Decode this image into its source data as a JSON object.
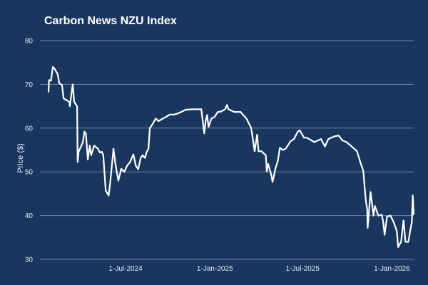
{
  "chart_data": {
    "type": "line",
    "title": "Carbon News NZU Index",
    "xlabel": "",
    "ylabel": "Price ($)",
    "ylim": [
      30,
      80
    ],
    "xlim": [
      "2024-01-24",
      "2026-02-15"
    ],
    "yticks": [
      "30",
      "40",
      "50",
      "60",
      "70",
      "80"
    ],
    "xticks": [
      {
        "date": "2024-07-01",
        "label": "1-Jul-2024"
      },
      {
        "date": "2025-01-01",
        "label": "1-Jan-2025"
      },
      {
        "date": "2025-07-01",
        "label": "1-Jul-2025"
      },
      {
        "date": "2026-01-01",
        "label": "1-Jan-2026"
      }
    ],
    "grid": true,
    "colors": {
      "background": "#19365f",
      "line": "#ffffff",
      "grid": "#6e84a6"
    },
    "series": [
      {
        "points": [
          [
            "2024-01-24",
            68.2
          ],
          [
            "2024-01-25",
            71.0
          ],
          [
            "2024-01-29",
            70.8
          ],
          [
            "2024-02-02",
            74.0
          ],
          [
            "2024-02-06",
            73.5
          ],
          [
            "2024-02-12",
            72.3
          ],
          [
            "2024-02-15",
            70.3
          ],
          [
            "2024-02-21",
            69.8
          ],
          [
            "2024-02-24",
            66.8
          ],
          [
            "2024-03-01",
            66.4
          ],
          [
            "2024-03-07",
            66.0
          ],
          [
            "2024-03-08",
            65.0
          ],
          [
            "2024-03-13",
            69.3
          ],
          [
            "2024-03-14",
            70.0
          ],
          [
            "2024-03-17",
            66.0
          ],
          [
            "2024-03-23",
            65.0
          ],
          [
            "2024-03-24",
            52.2
          ],
          [
            "2024-03-26",
            54.6
          ],
          [
            "2024-04-04",
            56.8
          ],
          [
            "2024-04-07",
            59.2
          ],
          [
            "2024-04-10",
            58.8
          ],
          [
            "2024-04-14",
            52.8
          ],
          [
            "2024-04-18",
            56.0
          ],
          [
            "2024-04-21",
            53.8
          ],
          [
            "2024-04-27",
            56.0
          ],
          [
            "2024-05-05",
            55.3
          ],
          [
            "2024-05-09",
            54.4
          ],
          [
            "2024-05-13",
            54.6
          ],
          [
            "2024-05-16",
            53.8
          ],
          [
            "2024-05-21",
            45.7
          ],
          [
            "2024-05-27",
            44.6
          ],
          [
            "2024-05-30",
            47.4
          ],
          [
            "2024-06-06",
            55.3
          ],
          [
            "2024-06-10",
            51.8
          ],
          [
            "2024-06-16",
            48.0
          ],
          [
            "2024-06-22",
            50.7
          ],
          [
            "2024-06-28",
            50.0
          ],
          [
            "2024-07-04",
            51.4
          ],
          [
            "2024-07-10",
            52.2
          ],
          [
            "2024-07-17",
            54.0
          ],
          [
            "2024-07-22",
            51.4
          ],
          [
            "2024-07-27",
            50.6
          ],
          [
            "2024-08-01",
            53.2
          ],
          [
            "2024-08-05",
            53.8
          ],
          [
            "2024-08-10",
            53.2
          ],
          [
            "2024-08-13",
            54.4
          ],
          [
            "2024-08-17",
            55.3
          ],
          [
            "2024-08-20",
            60.0
          ],
          [
            "2024-08-26",
            61.0
          ],
          [
            "2024-09-01",
            62.2
          ],
          [
            "2024-09-07",
            61.6
          ],
          [
            "2024-09-16",
            62.2
          ],
          [
            "2024-09-23",
            62.6
          ],
          [
            "2024-09-30",
            63.1
          ],
          [
            "2024-10-09",
            63.1
          ],
          [
            "2024-10-18",
            63.4
          ],
          [
            "2024-11-02",
            64.2
          ],
          [
            "2024-11-16",
            64.3
          ],
          [
            "2024-12-04",
            64.3
          ],
          [
            "2024-12-07",
            61.6
          ],
          [
            "2024-12-10",
            58.8
          ],
          [
            "2024-12-13",
            61.6
          ],
          [
            "2024-12-16",
            63.0
          ],
          [
            "2024-12-19",
            60.3
          ],
          [
            "2024-12-25",
            62.2
          ],
          [
            "2024-12-31",
            62.5
          ],
          [
            "2025-01-07",
            63.7
          ],
          [
            "2025-01-14",
            63.8
          ],
          [
            "2025-01-22",
            64.3
          ],
          [
            "2025-01-26",
            65.3
          ],
          [
            "2025-01-29",
            64.3
          ],
          [
            "2025-02-10",
            63.7
          ],
          [
            "2025-02-23",
            63.7
          ],
          [
            "2025-03-07",
            62.2
          ],
          [
            "2025-03-17",
            60.0
          ],
          [
            "2025-03-24",
            54.7
          ],
          [
            "2025-03-29",
            58.5
          ],
          [
            "2025-04-01",
            54.7
          ],
          [
            "2025-04-07",
            54.7
          ],
          [
            "2025-04-16",
            53.8
          ],
          [
            "2025-04-18",
            50.1
          ],
          [
            "2025-04-21",
            51.8
          ],
          [
            "2025-04-27",
            49.4
          ],
          [
            "2025-04-30",
            47.7
          ],
          [
            "2025-05-06",
            50.8
          ],
          [
            "2025-05-11",
            52.6
          ],
          [
            "2025-05-15",
            55.5
          ],
          [
            "2025-05-21",
            55.0
          ],
          [
            "2025-05-27",
            55.3
          ],
          [
            "2025-06-06",
            57.0
          ],
          [
            "2025-06-13",
            57.5
          ],
          [
            "2025-06-21",
            59.2
          ],
          [
            "2025-06-25",
            59.5
          ],
          [
            "2025-07-04",
            57.8
          ],
          [
            "2025-07-10",
            57.8
          ],
          [
            "2025-07-25",
            56.8
          ],
          [
            "2025-08-08",
            57.5
          ],
          [
            "2025-08-16",
            55.8
          ],
          [
            "2025-08-23",
            57.5
          ],
          [
            "2025-09-04",
            58.1
          ],
          [
            "2025-09-13",
            58.3
          ],
          [
            "2025-09-21",
            57.2
          ],
          [
            "2025-09-29",
            56.8
          ],
          [
            "2025-10-06",
            56.2
          ],
          [
            "2025-10-21",
            54.7
          ],
          [
            "2025-10-28",
            52.2
          ],
          [
            "2025-11-03",
            50.2
          ],
          [
            "2025-11-08",
            43.6
          ],
          [
            "2025-11-11",
            41.5
          ],
          [
            "2025-11-12",
            37.2
          ],
          [
            "2025-11-18",
            45.4
          ],
          [
            "2025-11-24",
            40.0
          ],
          [
            "2025-11-27",
            42.2
          ],
          [
            "2025-12-04",
            40.0
          ],
          [
            "2025-12-11",
            40.2
          ],
          [
            "2025-12-14",
            38.6
          ],
          [
            "2025-12-17",
            35.6
          ],
          [
            "2025-12-22",
            39.8
          ],
          [
            "2025-12-29",
            40.0
          ],
          [
            "2026-01-05",
            38.4
          ],
          [
            "2026-01-11",
            36.5
          ],
          [
            "2026-01-14",
            32.8
          ],
          [
            "2026-01-20",
            34.0
          ],
          [
            "2026-01-25",
            38.9
          ],
          [
            "2026-01-29",
            34.0
          ],
          [
            "2026-02-04",
            34.0
          ],
          [
            "2026-02-09",
            37.3
          ],
          [
            "2026-02-11",
            38.4
          ],
          [
            "2026-02-13",
            44.6
          ],
          [
            "2026-02-15",
            40.2
          ]
        ]
      }
    ]
  }
}
